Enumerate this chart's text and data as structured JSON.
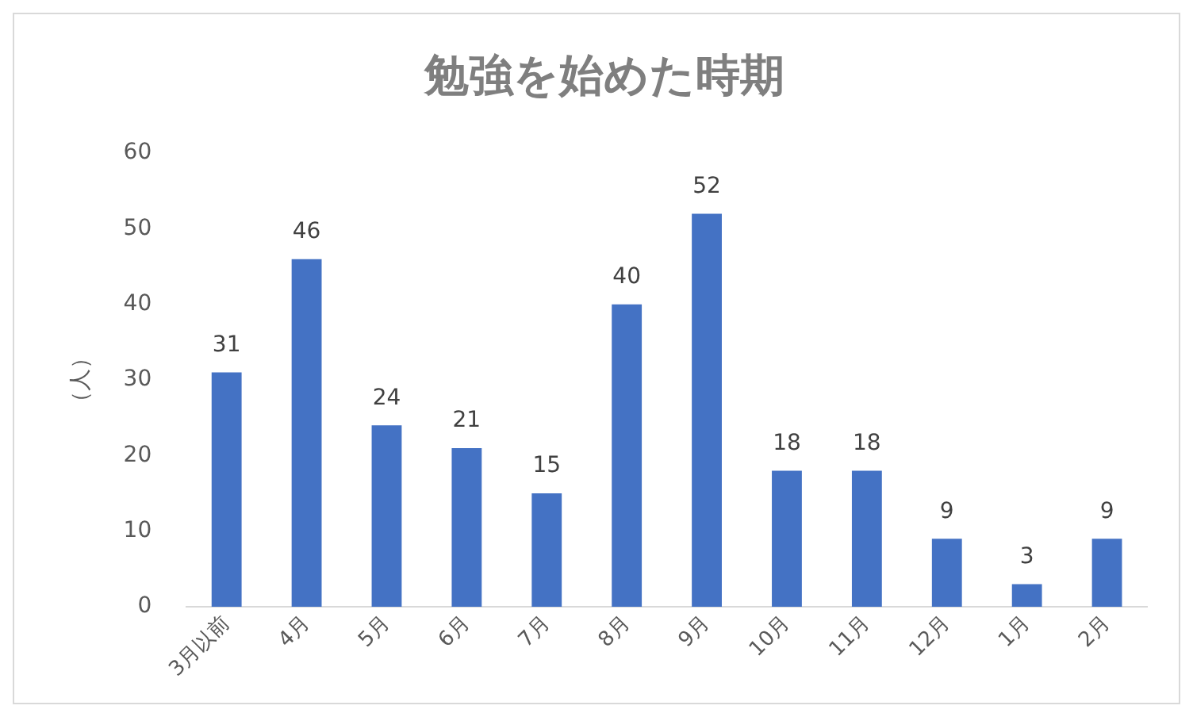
{
  "chart_data": {
    "type": "bar",
    "title": "勉強を始めた時期",
    "ylabel": "（人）",
    "categories": [
      "3月以前",
      "4月",
      "5月",
      "6月",
      "7月",
      "8月",
      "9月",
      "10月",
      "11月",
      "12月",
      "1月",
      "2月"
    ],
    "values": [
      31,
      46,
      24,
      21,
      15,
      40,
      52,
      18,
      18,
      9,
      3,
      9
    ],
    "color": "#4472c4",
    "ylim": [
      0,
      60
    ],
    "yticks": [
      0,
      10,
      20,
      30,
      40,
      50,
      60
    ],
    "grid": false,
    "data_labels": true,
    "legend": false
  }
}
